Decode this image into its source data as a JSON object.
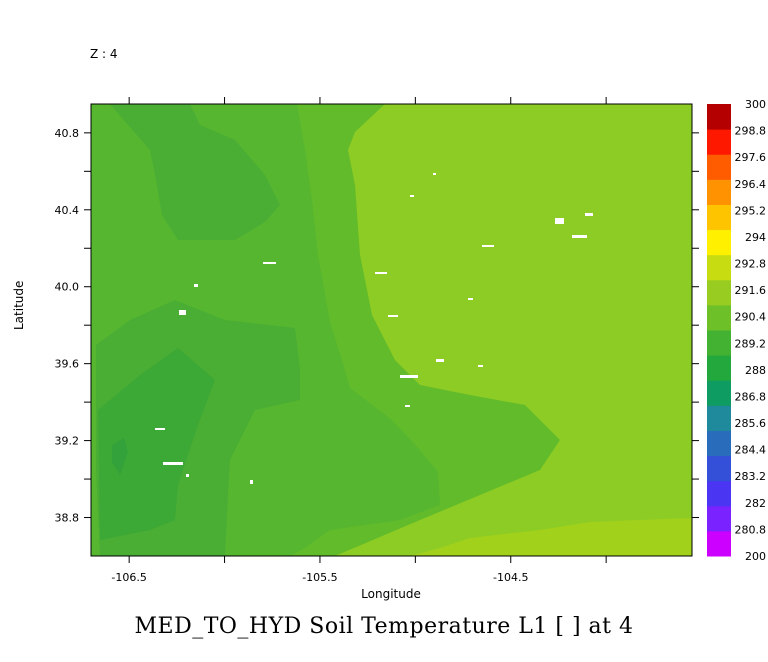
{
  "header": {
    "z_label": "Z : 4"
  },
  "title": "MED_TO_HYD Soil Temperature L1 [ ] at 4",
  "chart_data": {
    "type": "heatmap",
    "title": "MED_TO_HYD Soil Temperature L1 [ ] at 4",
    "xlabel": "Longitude",
    "ylabel": "Latitude",
    "xlim": [
      -106.7,
      -103.55
    ],
    "ylim": [
      38.6,
      40.95
    ],
    "x_ticks": [
      -106.5,
      -106.0,
      -105.5,
      -105.0,
      -104.5,
      -104.0
    ],
    "x_tick_labels": [
      "-106.5",
      "",
      "-105.5",
      "",
      "-104.5",
      ""
    ],
    "y_ticks": [
      38.8,
      39.0,
      39.2,
      39.4,
      39.6,
      39.8,
      40.0,
      40.2,
      40.4,
      40.6,
      40.8
    ],
    "y_tick_labels": [
      "38.8",
      "",
      "39.2",
      "",
      "39.6",
      "",
      "40.0",
      "",
      "40.4",
      "",
      "40.8"
    ],
    "colorbar": {
      "labels": [
        "200",
        "280.8",
        "282",
        "283.2",
        "284.4",
        "285.6",
        "286.8",
        "288",
        "289.2",
        "290.4",
        "291.6",
        "292.8",
        "294",
        "295.2",
        "296.4",
        "297.6",
        "298.8",
        "300"
      ],
      "colors": [
        "#cc00ff",
        "#7a22ff",
        "#4a36f2",
        "#3550d8",
        "#2a6cbc",
        "#1f8a9c",
        "#0f9c62",
        "#22a83c",
        "#43b233",
        "#6ec028",
        "#98cc20",
        "#c8dc12",
        "#fff000",
        "#ffc400",
        "#ff9200",
        "#ff5c00",
        "#ff1800",
        "#b40000"
      ]
    },
    "regions": [
      {
        "level": "290.4",
        "color": "#8dcc25"
      },
      {
        "level": "289.8",
        "color": "#62bb2a"
      },
      {
        "level": "289.2",
        "color": "#56b630"
      },
      {
        "level": "288.6",
        "color": "#4aae34"
      },
      {
        "level": "288.0",
        "color": "#3ca836"
      },
      {
        "level": "291.0",
        "color": "#a2d11c"
      }
    ]
  }
}
